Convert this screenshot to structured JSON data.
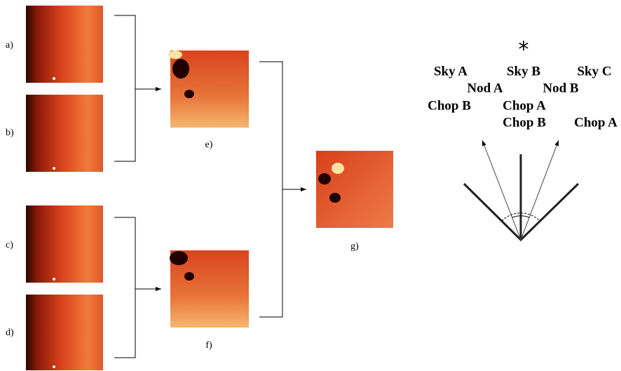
{
  "panel_labels": [
    "a)",
    "b)",
    "c)",
    "d)",
    "e)",
    "f)",
    "g)"
  ],
  "star": "*",
  "sky": [
    "Sky A",
    "Sky B",
    "Sky C"
  ],
  "nod": [
    "Nod A",
    "Nod B"
  ],
  "chop_row1": [
    "Chop B",
    "Chop A"
  ],
  "chop_row2": [
    "Chop B",
    "Chop A"
  ]
}
